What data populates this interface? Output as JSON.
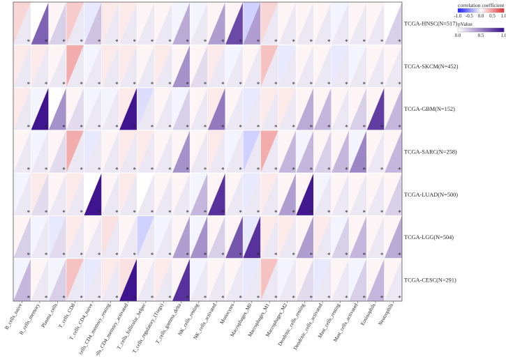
{
  "chart_data": {
    "type": "heatmap",
    "title": "",
    "xlabel": "",
    "ylabel": "",
    "cell_style": "split-triangle: upper-left = correlation coefficient, lower-right = pValue",
    "rows": [
      "TCGA-HNSC(N=517)",
      "TCGA-SKCM(N=452)",
      "TCGA-GBM(N=152)",
      "TCGA-SARC(N=258)",
      "TCGA-LUAD(N=500)",
      "TCGA-LGG(N=504)",
      "TCGA-CESC(N=291)"
    ],
    "columns": [
      "B_cells_naive",
      "B_cells_memory",
      "Plasma_cells",
      "T_cells_CD8",
      "T_cells_CD4_naive",
      "T_cells_CD4_memory_resting",
      "T_cells_CD4_memory_activated",
      "T_cells_follicular_helper",
      "T_cells_regulatory_(Tregs)",
      "T_cells_gamma_delta",
      "NK_cells_resting",
      "NK_cells_activated",
      "Monocytes",
      "Macrophages_M0",
      "Macrophages_M1",
      "Macrophages_M2",
      "Dendritic_cells_resting",
      "Dendritic_cells_activated",
      "Mast_cells_resting",
      "Mast_cells_activated",
      "Eosinophils",
      "Neutrophils"
    ],
    "correlation": [
      [
        0.2,
        0.0,
        0.05,
        0.25,
        -0.1,
        0.1,
        0.1,
        0.05,
        0.05,
        -0.05,
        -0.05,
        0.05,
        0.05,
        -0.2,
        0.2,
        0.05,
        0.05,
        0.05,
        -0.05,
        0.05,
        0.05,
        0.0
      ],
      [
        0.1,
        0.1,
        0.05,
        0.4,
        -0.05,
        0.1,
        0.1,
        0.05,
        0.1,
        0.05,
        0.05,
        0.1,
        -0.05,
        0.05,
        0.3,
        -0.1,
        0.05,
        0.05,
        -0.1,
        -0.05,
        0.05,
        0.05
      ],
      [
        0.1,
        -0.05,
        0.0,
        0.05,
        -0.05,
        -0.05,
        0.1,
        -0.15,
        0.05,
        -0.05,
        0.05,
        0.1,
        0.05,
        -0.1,
        0.1,
        0.1,
        0.05,
        0.05,
        0.05,
        0.05,
        0.05,
        0.05
      ],
      [
        0.05,
        -0.05,
        0.05,
        0.4,
        -0.1,
        0.05,
        0.1,
        0.1,
        0.05,
        0.05,
        0.05,
        0.1,
        -0.05,
        -0.2,
        0.4,
        0.05,
        -0.05,
        0.05,
        0.05,
        -0.05,
        0.05,
        0.05
      ],
      [
        -0.05,
        0.1,
        0.05,
        0.1,
        0.0,
        0.05,
        0.1,
        0.0,
        0.05,
        0.05,
        -0.05,
        0.05,
        0.05,
        -0.1,
        0.1,
        0.05,
        0.05,
        -0.05,
        0.05,
        0.05,
        0.05,
        0.05
      ],
      [
        0.05,
        -0.05,
        -0.1,
        0.1,
        0.05,
        0.15,
        0.05,
        -0.2,
        -0.05,
        0.05,
        -0.05,
        0.05,
        0.05,
        -0.1,
        0.1,
        0.1,
        0.05,
        0.1,
        -0.05,
        0.05,
        0.05,
        0.05
      ],
      [
        -0.05,
        0.05,
        -0.05,
        0.3,
        -0.1,
        0.1,
        0.15,
        0.05,
        0.1,
        0.05,
        -0.05,
        0.05,
        0.05,
        -0.1,
        0.3,
        -0.05,
        0.05,
        -0.1,
        0.05,
        -0.05,
        0.05,
        0.05
      ]
    ],
    "pvalue": [
      [
        0.1,
        0.65,
        0.2,
        0.1,
        0.25,
        0.1,
        0.1,
        0.1,
        0.1,
        0.35,
        0.1,
        0.4,
        0.75,
        0.4,
        0.1,
        0.1,
        0.1,
        0.1,
        0.1,
        0.1,
        0.1,
        0.2
      ],
      [
        0.1,
        0.1,
        0.1,
        0.1,
        0.1,
        0.1,
        0.1,
        0.1,
        0.1,
        0.45,
        0.15,
        0.1,
        0.1,
        0.1,
        0.1,
        0.1,
        0.1,
        0.1,
        0.1,
        0.1,
        0.1,
        0.1
      ],
      [
        0.1,
        0.97,
        0.45,
        0.15,
        0.1,
        0.1,
        0.97,
        0.1,
        0.1,
        0.2,
        0.1,
        0.55,
        0.1,
        0.1,
        0.1,
        0.1,
        0.35,
        0.3,
        0.1,
        0.2,
        0.8,
        0.3
      ],
      [
        0.1,
        0.1,
        0.15,
        0.1,
        0.1,
        0.1,
        0.1,
        0.1,
        0.1,
        0.45,
        0.1,
        0.1,
        0.1,
        0.1,
        0.1,
        0.3,
        0.3,
        0.2,
        0.3,
        0.5,
        0.1,
        0.3
      ],
      [
        0.1,
        0.15,
        0.1,
        0.1,
        0.97,
        0.1,
        0.1,
        0.1,
        0.1,
        0.1,
        0.3,
        0.85,
        0.1,
        0.1,
        0.1,
        0.4,
        0.95,
        0.1,
        0.1,
        0.1,
        0.1,
        0.2
      ],
      [
        0.2,
        0.1,
        0.15,
        0.1,
        0.1,
        0.1,
        0.1,
        0.1,
        0.1,
        0.4,
        0.45,
        0.2,
        0.7,
        0.85,
        0.1,
        0.1,
        0.4,
        0.1,
        0.2,
        0.3,
        0.1,
        0.35
      ],
      [
        0.3,
        0.1,
        0.2,
        0.1,
        0.1,
        0.1,
        0.97,
        0.1,
        0.1,
        0.85,
        0.1,
        0.1,
        0.1,
        0.1,
        0.1,
        0.1,
        0.15,
        0.1,
        0.1,
        0.2,
        0.3,
        0.1
      ]
    ],
    "significance_marker": "*",
    "legend": {
      "corr_title": "correlation coefficient",
      "corr_ticks": [
        "-1.0",
        "-0.5",
        "0.0",
        "0.5",
        "1.0"
      ],
      "corr_range": [
        -1.0,
        1.0
      ],
      "corr_colors": [
        "#1a1aff",
        "#ffffff",
        "#e03030"
      ],
      "p_title": "pValue",
      "p_ticks": [
        "0.0",
        "0.5",
        "1.0"
      ],
      "p_range": [
        0.0,
        1.0
      ],
      "p_colors": [
        "#ffffff",
        "#3a0d8a"
      ],
      "placement": "top-right"
    }
  }
}
